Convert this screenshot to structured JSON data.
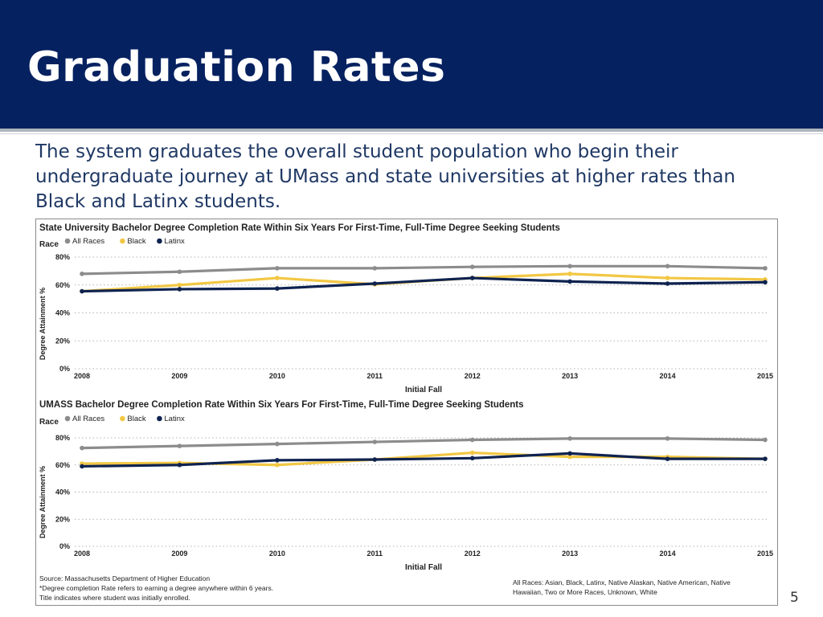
{
  "slide": {
    "title": "Graduation Rates",
    "intro": "The system graduates the overall student population who begin their undergraduate journey at UMass and state universities at higher rates than Black and Latinx students.",
    "page_number": "5"
  },
  "colors": {
    "header_bg": "#052160",
    "all_races": "#8c8c8c",
    "black": "#f2c744",
    "latinx": "#0f2350"
  },
  "chart_data": [
    {
      "type": "line",
      "title": "State University Bachelor Degree Completion Rate Within Six Years For First-Time, Full-Time Degree Seeking Students",
      "legend_title": "Race",
      "legend_position": "top-left",
      "xlabel": "Initial Fall",
      "ylabel": "Degree Attainment %",
      "x": [
        "2008",
        "2009",
        "2010",
        "2011",
        "2012",
        "2013",
        "2014",
        "2015"
      ],
      "ylim": [
        0,
        80
      ],
      "yticks": [
        "0%",
        "20%",
        "40%",
        "60%",
        "80%"
      ],
      "grid": true,
      "series": [
        {
          "name": "All Races",
          "color": "#8c8c8c",
          "values": [
            68,
            69.5,
            72,
            72,
            73,
            73.5,
            73.5,
            72
          ]
        },
        {
          "name": "Black",
          "color": "#f2c744",
          "values": [
            55.5,
            60,
            65,
            60.5,
            65,
            68,
            65,
            64
          ]
        },
        {
          "name": "Latinx",
          "color": "#0f2350",
          "values": [
            55.5,
            57,
            57.5,
            61,
            65,
            62.5,
            61,
            62
          ]
        }
      ]
    },
    {
      "type": "line",
      "title": "UMASS Bachelor Degree Completion Rate Within Six Years For First-Time, Full-Time Degree Seeking Students",
      "legend_title": "Race",
      "legend_position": "top-left",
      "xlabel": "Initial Fall",
      "ylabel": "Degree Attainment %",
      "x": [
        "2008",
        "2009",
        "2010",
        "2011",
        "2012",
        "2013",
        "2014",
        "2015"
      ],
      "ylim": [
        0,
        80
      ],
      "yticks": [
        "0%",
        "20%",
        "40%",
        "60%",
        "80%"
      ],
      "grid": true,
      "series": [
        {
          "name": "All Races",
          "color": "#8c8c8c",
          "values": [
            72.5,
            74,
            75.5,
            77,
            78.5,
            79.5,
            79.5,
            78.5
          ]
        },
        {
          "name": "Black",
          "color": "#f2c744",
          "values": [
            61,
            61.5,
            60,
            64,
            69,
            66,
            66,
            64.5
          ]
        },
        {
          "name": "Latinx",
          "color": "#0f2350",
          "values": [
            59,
            60,
            63.5,
            64,
            65,
            68.5,
            64.5,
            64.5
          ]
        }
      ]
    }
  ],
  "notes": {
    "source": "Source: Massachusetts Department of Higher Education",
    "footnote1": "*Degree completion Rate refers to earning a degree anywhere within 6 years.",
    "footnote2": "Title indicates where student was initially enrolled.",
    "races_line1": "All Races: Asian, Black, Latinx, Native Alaskan, Native American, Native",
    "races_line2": "Hawaiian, Two or More Races, Unknown, White"
  }
}
